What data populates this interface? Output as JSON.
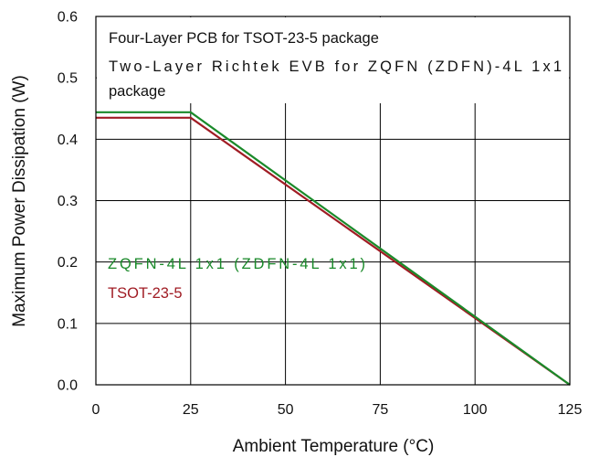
{
  "chart_data": {
    "type": "line",
    "title": "",
    "xlabel": "Ambient Temperature (°C)",
    "ylabel": "Maximum Power Dissipation (W)",
    "xlim": [
      0,
      125
    ],
    "ylim": [
      0,
      0.6
    ],
    "xticks": [
      0,
      25,
      50,
      75,
      100,
      125
    ],
    "yticks": [
      0.0,
      0.1,
      0.2,
      0.3,
      0.4,
      0.5,
      0.6
    ],
    "xtick_labels": [
      "0",
      "25",
      "50",
      "75",
      "100",
      "125"
    ],
    "ytick_labels": [
      "0.0",
      "0.1",
      "0.2",
      "0.3",
      "0.4",
      "0.5",
      "0.6"
    ],
    "grid": true,
    "annotations": [
      "Four-Layer PCB for TSOT-23-5 package",
      "Two-Layer Richtek EVB for ZQFN (ZDFN)-4L 1x1",
      "package"
    ],
    "series": [
      {
        "name": "ZQFN-4L 1x1 (ZDFN-4L 1x1)",
        "color": "#1a8a2a",
        "x": [
          0,
          25,
          125
        ],
        "y": [
          0.444,
          0.444,
          0
        ]
      },
      {
        "name": "TSOT-23-5",
        "color": "#a01c24",
        "x": [
          0,
          25,
          125
        ],
        "y": [
          0.435,
          0.435,
          0
        ]
      }
    ]
  }
}
